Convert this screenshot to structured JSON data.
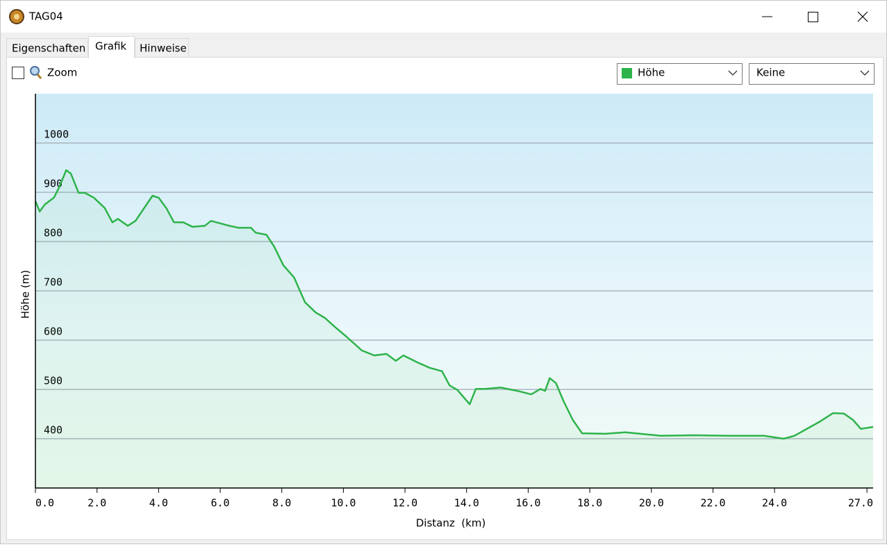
{
  "window": {
    "title": "TAG04"
  },
  "tabs": [
    "Eigenschaften",
    "Grafik",
    "Hinweise"
  ],
  "toolbar": {
    "zoom_label": "Zoom",
    "second_select": "Keine"
  },
  "chart_data": {
    "type": "area",
    "x_label": "Distanz  (km)",
    "y_label": "Höhe (m)",
    "x": [
      0,
      0.14,
      0.3,
      0.6,
      0.77,
      1.0,
      1.15,
      1.4,
      1.6,
      1.9,
      2.25,
      2.5,
      2.68,
      3.0,
      3.25,
      3.8,
      4.0,
      4.25,
      4.5,
      4.8,
      5.1,
      5.5,
      5.7,
      6.3,
      6.6,
      7.0,
      7.15,
      7.5,
      7.75,
      8.05,
      8.4,
      8.75,
      9.1,
      9.4,
      9.7,
      10.1,
      10.6,
      11.0,
      11.4,
      11.7,
      11.95,
      12.4,
      12.8,
      13.2,
      13.45,
      13.7,
      14.1,
      14.3,
      14.6,
      15.1,
      15.65,
      16.1,
      16.4,
      16.55,
      16.7,
      16.9,
      17.15,
      17.45,
      17.75,
      18.5,
      19.15,
      20.3,
      21.4,
      22.5,
      23.65,
      24.3,
      24.65,
      25.45,
      25.9,
      26.25,
      26.55,
      26.8,
      27.2
    ],
    "series": [
      {
        "name": "Höhe",
        "color": "#2db34a",
        "values": [
          882,
          861,
          875,
          889,
          910,
          945,
          938,
          899,
          899,
          889,
          868,
          839,
          846,
          832,
          842,
          893,
          889,
          868,
          839,
          839,
          830,
          832,
          842,
          832,
          828,
          828,
          818,
          814,
          790,
          752,
          727,
          677,
          656,
          645,
          628,
          607,
          579,
          569,
          572,
          558,
          569,
          555,
          544,
          537,
          508,
          499,
          470,
          501,
          501,
          504,
          497,
          490,
          501,
          497,
          523,
          513,
          476,
          438,
          411,
          410,
          413,
          406,
          407,
          406,
          406,
          400,
          406,
          434,
          452,
          451,
          438,
          420,
          424
        ]
      }
    ],
    "xlim": [
      0,
      27.2
    ],
    "ylim": [
      300,
      1100
    ],
    "xticks": [
      {
        "value": 0,
        "label": "0.0"
      },
      {
        "value": 2,
        "label": "2.0"
      },
      {
        "value": 4,
        "label": "4.0"
      },
      {
        "value": 6,
        "label": "6.0"
      },
      {
        "value": 8,
        "label": "8.0"
      },
      {
        "value": 10,
        "label": "10.0"
      },
      {
        "value": 12,
        "label": "12.0"
      },
      {
        "value": 14,
        "label": "14.0"
      },
      {
        "value": 16,
        "label": "16.0"
      },
      {
        "value": 18,
        "label": "18.0"
      },
      {
        "value": 20,
        "label": "20.0"
      },
      {
        "value": 22,
        "label": "22.0"
      },
      {
        "value": 24,
        "label": "24.0"
      },
      {
        "value": 27,
        "label": "27.0"
      }
    ],
    "yticks": [
      400,
      500,
      600,
      700,
      800,
      900,
      1000
    ],
    "grid": true
  }
}
